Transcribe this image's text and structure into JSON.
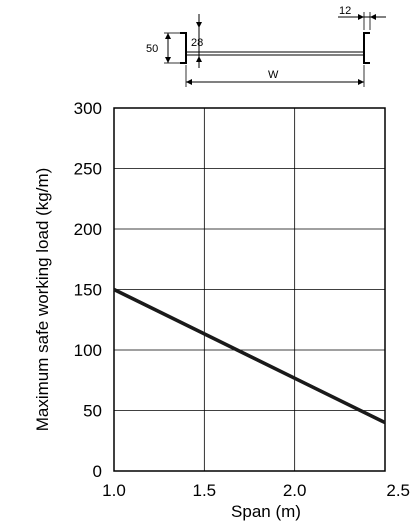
{
  "diagram": {
    "height_label": "50",
    "gap_label": "28",
    "lip_label": "12",
    "width_label": "W"
  },
  "chart_data": {
    "type": "line",
    "xlabel": "Span (m)",
    "ylabel": "Maximum safe working load (kg/m)",
    "xlim": [
      1.0,
      2.5
    ],
    "ylim": [
      0,
      300
    ],
    "xticks": [
      "1.0",
      "1.5",
      "2.0",
      "2.5"
    ],
    "yticks": [
      "0",
      "50",
      "100",
      "150",
      "200",
      "250",
      "300"
    ],
    "grid": true,
    "series": [
      {
        "x": [
          1.0,
          2.5
        ],
        "values": [
          150,
          40
        ]
      }
    ]
  },
  "colors": {
    "line": "#1a1a1a",
    "grid": "#000000"
  }
}
